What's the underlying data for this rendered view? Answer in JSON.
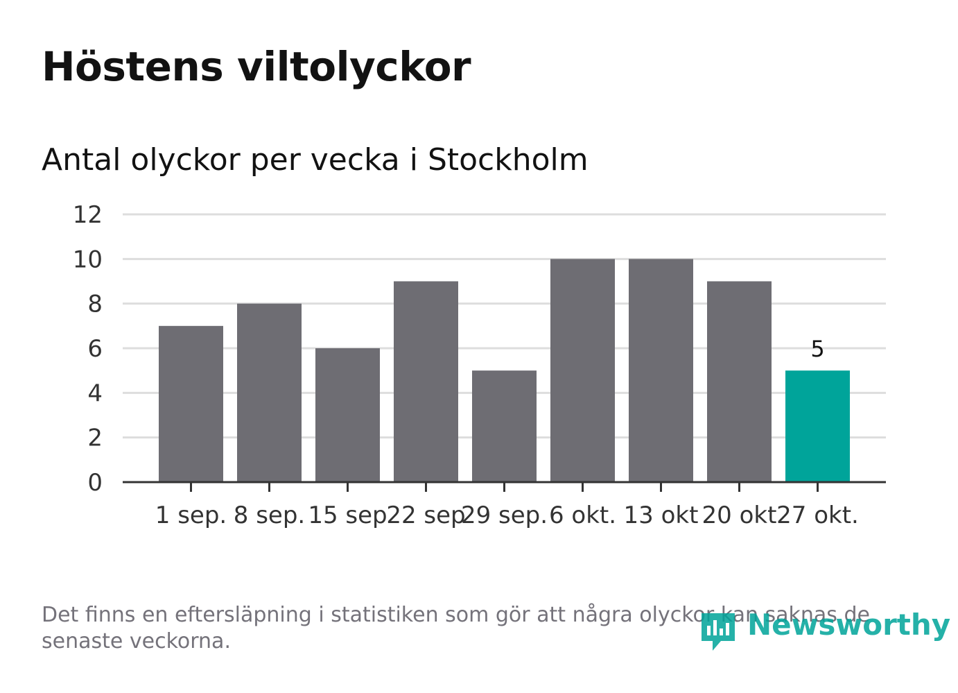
{
  "title": "Höstens viltolyckor",
  "subtitle": "Antal olyckor per vecka i Stockholm",
  "footnote": "Det finns en eftersläpning i statistiken som gör att några olyckor kan saknas de senaste veckorna.",
  "logo": {
    "text": "Newsworthy",
    "icon": "newsworthy-chart-icon"
  },
  "colors": {
    "bar": "#6e6d73",
    "highlight": "#00a49a",
    "grid": "#dddddd",
    "axis": "#333333",
    "text": "#121212"
  },
  "chart_data": {
    "type": "bar",
    "title": "Höstens viltolyckor",
    "subtitle": "Antal olyckor per vecka i Stockholm",
    "xlabel": "",
    "ylabel": "",
    "categories": [
      "1 sep.",
      "8 sep.",
      "15 sep",
      "22 sep",
      "29 sep.",
      "6 okt.",
      "13 okt",
      "20 okt",
      "27 okt."
    ],
    "values": [
      7,
      8,
      6,
      9,
      5,
      10,
      10,
      9,
      5
    ],
    "ylim": [
      0,
      12
    ],
    "yticks": [
      0,
      2,
      4,
      6,
      8,
      10,
      12
    ],
    "highlight_index": 8,
    "annotations": [
      {
        "category": "27 okt.",
        "text": "5"
      }
    ],
    "grid": true,
    "legend": "none"
  }
}
